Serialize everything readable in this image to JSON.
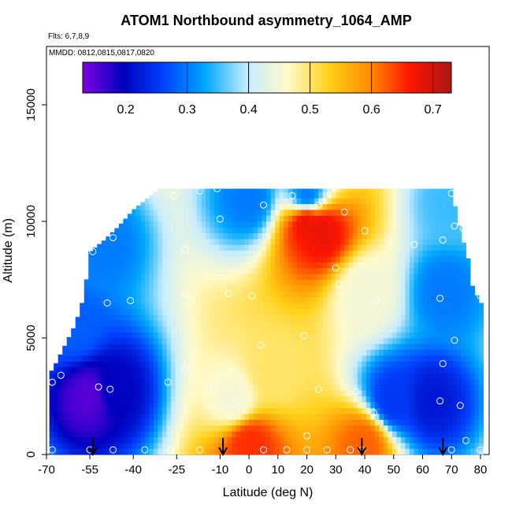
{
  "title": "ATOM1 Northbound asymmetry_1064_AMP",
  "flights_label": "Flts: 6,7,8,9",
  "dates_label": "MMDD: 0812,0815,0817,0820",
  "chart_data": {
    "type": "heatmap",
    "title": "ATOM1 Northbound asymmetry_1064_AMP",
    "xlabel": "Latitude (deg N)",
    "ylabel": "Altitude (m)",
    "xlim": [
      -70,
      83
    ],
    "ylim": [
      0,
      17500
    ],
    "x_ticks": [
      -70,
      -55,
      -40,
      -25,
      -10,
      0,
      10,
      20,
      30,
      40,
      50,
      60,
      70,
      80
    ],
    "y_ticks": [
      0,
      5000,
      10000,
      15000
    ],
    "colorbar": {
      "min": 0.13,
      "max": 0.73,
      "ticks": [
        0.2,
        0.3,
        0.4,
        0.5,
        0.6,
        0.7
      ],
      "colors": [
        "#7b00e0",
        "#0000bf",
        "#0044ff",
        "#00a8ff",
        "#c6ecff",
        "#fffacc",
        "#ffd21a",
        "#ff8c00",
        "#ff1500",
        "#a61616"
      ]
    },
    "arrow_latitudes": [
      -54,
      -9,
      39,
      67
    ],
    "altitude_top_by_lat": [
      [
        -68,
        3600
      ],
      [
        -64,
        4600
      ],
      [
        -60,
        5600
      ],
      [
        -57,
        6800
      ],
      [
        -55,
        8700
      ],
      [
        -50,
        9200
      ],
      [
        -45,
        9800
      ],
      [
        -40,
        10500
      ],
      [
        -35,
        11000
      ],
      [
        -31,
        11400
      ],
      [
        70,
        11400
      ],
      [
        72,
        10200
      ],
      [
        74,
        9200
      ],
      [
        76,
        8300
      ],
      [
        77,
        7300
      ],
      [
        80,
        6500
      ]
    ],
    "field_anchors": [
      {
        "lat": -55,
        "alt": 2500,
        "value": 0.15
      },
      {
        "lat": -47,
        "alt": 2800,
        "value": 0.2
      },
      {
        "lat": -60,
        "alt": 5400,
        "value": 0.28
      },
      {
        "lat": -50,
        "alt": 9000,
        "value": 0.3
      },
      {
        "lat": -5,
        "alt": 2300,
        "value": 0.45
      },
      {
        "lat": 8,
        "alt": 3500,
        "value": 0.5
      },
      {
        "lat": 20,
        "alt": 10000,
        "value": 0.68
      },
      {
        "lat": 25,
        "alt": 9600,
        "value": 0.68
      },
      {
        "lat": 40,
        "alt": 7000,
        "value": 0.45
      },
      {
        "lat": 50,
        "alt": 2300,
        "value": 0.25
      },
      {
        "lat": 63,
        "alt": 2300,
        "value": 0.22
      },
      {
        "lat": 68,
        "alt": 7000,
        "value": 0.3
      },
      {
        "lat": 70,
        "alt": 10800,
        "value": 0.35
      },
      {
        "lat": 0,
        "alt": 11000,
        "value": 0.3
      },
      {
        "lat": 20,
        "alt": 11100,
        "value": 0.3
      },
      {
        "lat": 0,
        "alt": 500,
        "value": 0.65
      },
      {
        "lat": 40,
        "alt": 500,
        "value": 0.62
      }
    ],
    "sample_points": [
      [
        -68,
        200
      ],
      [
        -55,
        200
      ],
      [
        -47,
        200
      ],
      [
        -36,
        200
      ],
      [
        -27,
        200
      ],
      [
        -17,
        200
      ],
      [
        5,
        200
      ],
      [
        13,
        200
      ],
      [
        20,
        200
      ],
      [
        27,
        200
      ],
      [
        35,
        200
      ],
      [
        39,
        200
      ],
      [
        70,
        200
      ],
      [
        80,
        200
      ],
      [
        75,
        600
      ],
      [
        20,
        800
      ],
      [
        -68,
        3100
      ],
      [
        -65,
        3400
      ],
      [
        -52,
        2900
      ],
      [
        -48,
        2800
      ],
      [
        -28,
        3100
      ],
      [
        -12,
        2900
      ],
      [
        -5,
        2200
      ],
      [
        24,
        2800
      ],
      [
        37,
        2700
      ],
      [
        43,
        1800
      ],
      [
        66,
        2300
      ],
      [
        73,
        2100
      ],
      [
        67,
        3900
      ],
      [
        -22,
        3700
      ],
      [
        19,
        5100
      ],
      [
        4,
        4700
      ],
      [
        71,
        4900
      ],
      [
        -41,
        6600
      ],
      [
        -49,
        6500
      ],
      [
        -22,
        6900
      ],
      [
        -7,
        6900
      ],
      [
        1,
        6800
      ],
      [
        44,
        6600
      ],
      [
        66,
        6700
      ],
      [
        80,
        6800
      ],
      [
        -54,
        8700
      ],
      [
        -47,
        9300
      ],
      [
        -22,
        8800
      ],
      [
        -10,
        10100
      ],
      [
        30,
        8000
      ],
      [
        31,
        7300
      ],
      [
        33,
        10400
      ],
      [
        40,
        9600
      ],
      [
        48,
        9200
      ],
      [
        57,
        9000
      ],
      [
        67,
        9200
      ],
      [
        71,
        9800
      ],
      [
        74,
        9700
      ],
      [
        5,
        10700
      ],
      [
        15,
        11100
      ],
      [
        24,
        10700
      ],
      [
        -26,
        11100
      ],
      [
        -17,
        11300
      ],
      [
        70,
        11200
      ],
      [
        -11,
        11400
      ]
    ]
  }
}
